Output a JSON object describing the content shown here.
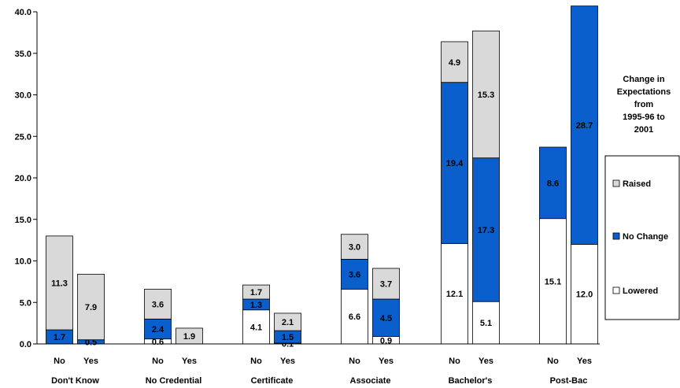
{
  "chart_data": {
    "type": "bar",
    "stacked": true,
    "groups": [
      "Don't Know",
      "No Credential",
      "Certificate",
      "Associate",
      "Bachelor's",
      "Post-Bac"
    ],
    "bars_per_group": [
      "No",
      "Yes"
    ],
    "ylim": [
      0,
      40
    ],
    "yticks": [
      "0.0",
      "5.0",
      "10.0",
      "15.0",
      "20.0",
      "25.0",
      "30.0",
      "35.0",
      "40.0"
    ],
    "legend_title": [
      "Change in",
      "Expectations",
      "from",
      "1995-96 to",
      "2001"
    ],
    "series": [
      {
        "name": "Lowered",
        "color": "#ffffff",
        "values": [
          0,
          0,
          0.6,
          0,
          4.1,
          0.1,
          6.6,
          0.9,
          12.1,
          5.1,
          15.1,
          12.0
        ],
        "labels": [
          "",
          "",
          "0.6",
          "",
          "4.1",
          "0.1",
          "6.6",
          "0.9",
          "12.1",
          "5.1",
          "15.1",
          "12.0"
        ]
      },
      {
        "name": "No Change",
        "color": "#0a5fcc",
        "values": [
          1.7,
          0.5,
          2.4,
          0,
          1.3,
          1.5,
          3.6,
          4.5,
          19.4,
          17.3,
          8.6,
          28.7
        ],
        "labels": [
          "1.7",
          "0.5",
          "2.4",
          "",
          "1.3",
          "1.5",
          "3.6",
          "4.5",
          "19.4",
          "17.3",
          "8.6",
          "28.7"
        ]
      },
      {
        "name": "Raised",
        "color": "#d9d9d9",
        "values": [
          11.3,
          7.9,
          3.6,
          1.9,
          1.7,
          2.1,
          3.0,
          3.7,
          4.9,
          15.3,
          0,
          0
        ],
        "labels": [
          "11.3",
          "7.9",
          "3.6",
          "1.9",
          "1.7",
          "2.1",
          "3.0",
          "3.7",
          "4.9",
          "15.3",
          "",
          ""
        ]
      }
    ],
    "legend_order": [
      "Raised",
      "No Change",
      "Lowered"
    ],
    "grid": false,
    "legend_position": "right"
  }
}
